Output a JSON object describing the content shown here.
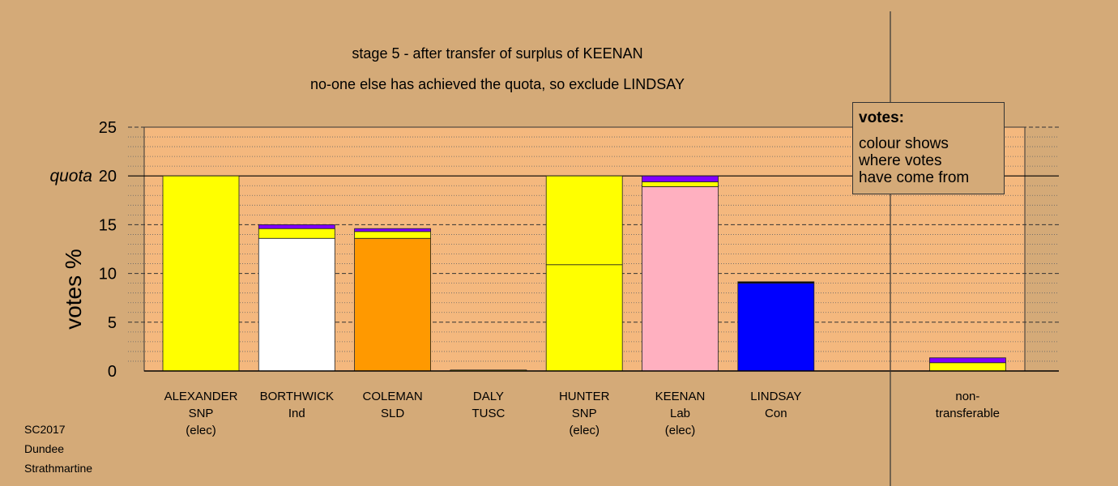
{
  "title_line1": "stage 5 - after transfer of surplus of KEENAN",
  "title_line2": "no-one else has achieved the quota, so exclude LINDSAY",
  "ylabel": "votes %",
  "quota_label": "quota",
  "legend": {
    "title": "votes:",
    "lines": [
      "colour shows",
      "where votes",
      "have come from"
    ]
  },
  "footer": [
    "SC2017",
    "Dundee",
    "Strathmartine"
  ],
  "colors": {
    "background": "#d4aa78",
    "plot_area": "#f4b87e",
    "snp": "#ffff00",
    "ind": "#ffffff",
    "sld": "#ff9900",
    "lab": "#ffb0c0",
    "con": "#0000ff",
    "transfer_purple": "#8000ff"
  },
  "chart_data": {
    "type": "bar",
    "stacked": true,
    "ylim": [
      0,
      25
    ],
    "yticks": [
      0,
      5,
      10,
      15,
      20,
      25
    ],
    "quota": 20,
    "grid": "dashed horizontal",
    "categories": [
      {
        "lines": [
          "ALEXANDER",
          "SNP",
          "(elec)"
        ],
        "segments": [
          {
            "value": 20.0,
            "color": "#ffff00"
          }
        ]
      },
      {
        "lines": [
          "BORTHWICK",
          "Ind"
        ],
        "segments": [
          {
            "value": 13.6,
            "color": "#ffffff"
          },
          {
            "value": 1.0,
            "color": "#ffff00"
          },
          {
            "value": 0.4,
            "color": "#8000ff"
          }
        ]
      },
      {
        "lines": [
          "COLEMAN",
          "SLD"
        ],
        "segments": [
          {
            "value": 13.6,
            "color": "#ff9900"
          },
          {
            "value": 0.7,
            "color": "#ffff00"
          },
          {
            "value": 0.3,
            "color": "#8000ff"
          }
        ]
      },
      {
        "lines": [
          "DALY",
          "TUSC"
        ],
        "segments": [
          {
            "value": 0.1,
            "color": "#ffff00"
          }
        ]
      },
      {
        "lines": [
          "HUNTER",
          "SNP",
          "(elec)"
        ],
        "segments": [
          {
            "value": 10.9,
            "color": "#ffff00"
          },
          {
            "value": 9.1,
            "color": "#ffff00"
          }
        ]
      },
      {
        "lines": [
          "KEENAN",
          "Lab",
          "(elec)"
        ],
        "segments": [
          {
            "value": 18.9,
            "color": "#ffb0c0"
          },
          {
            "value": 0.5,
            "color": "#ffff00"
          },
          {
            "value": 0.6,
            "color": "#8000ff"
          }
        ]
      },
      {
        "lines": [
          "LINDSAY",
          "Con"
        ],
        "segments": [
          {
            "value": 9.0,
            "color": "#0000ff"
          },
          {
            "value": 0.15,
            "color": "#000000"
          }
        ]
      },
      {
        "lines": [],
        "segments": []
      },
      {
        "lines": [
          "non-",
          "transferable"
        ],
        "segments": [
          {
            "value": 0.85,
            "color": "#ffff00"
          },
          {
            "value": 0.5,
            "color": "#8000ff"
          }
        ]
      }
    ]
  }
}
